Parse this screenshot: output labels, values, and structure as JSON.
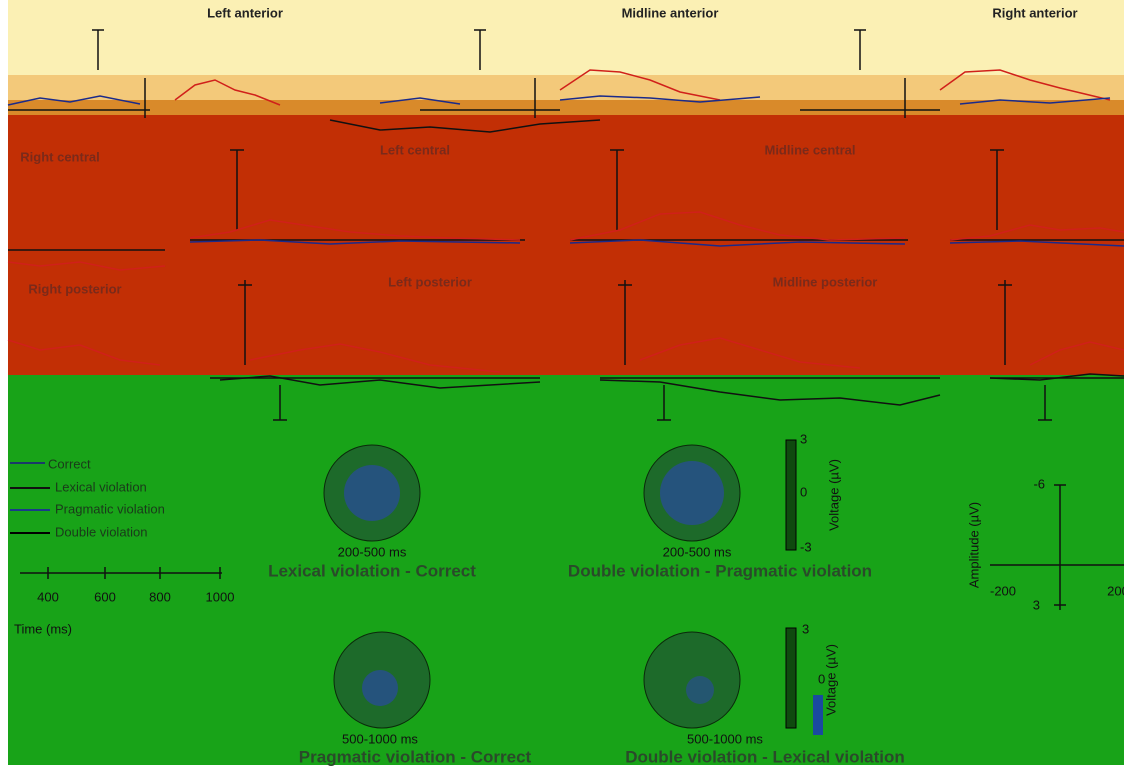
{
  "panels": [
    "Left anterior",
    "Midline anterior",
    "Right anterior",
    "Right central",
    "Left central",
    "Midline central",
    "Right posterior",
    "Left posterior",
    "Midline posterior"
  ],
  "legend": [
    "Correct",
    "Lexical violation",
    "Pragmatic violation",
    "Double violation"
  ],
  "time_axis": {
    "ticks": [
      "400",
      "600",
      "800",
      "1000"
    ],
    "label": "Time (ms)"
  },
  "scalp_maps": [
    {
      "window": "200-500 ms",
      "title": "Lexical violation - Correct"
    },
    {
      "window": "200-500 ms",
      "title": "Double violation - Pragmatic violation"
    },
    {
      "window": "500-1000 ms",
      "title": "Pragmatic violation - Correct"
    },
    {
      "window": "500-1000 ms",
      "title": "Double violation - Lexical violation"
    }
  ],
  "colorbar": {
    "ticks": [
      "3",
      "0",
      "-3"
    ],
    "label": "Voltage (µV)"
  },
  "amplitude_axis": {
    "yticks": [
      "-6",
      "3"
    ],
    "xticks": [
      "-200",
      "200"
    ],
    "label": "Amplitude (µV)"
  }
}
